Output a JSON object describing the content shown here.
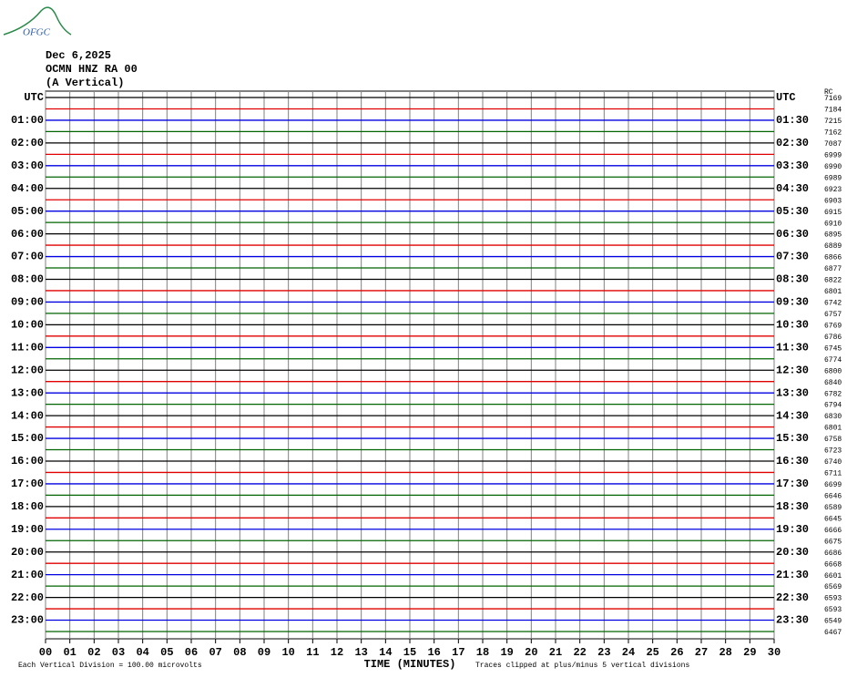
{
  "chart_data": {
    "type": "helicorder",
    "logo": "OFGC",
    "title": [
      "Dec 6,2025",
      "OCMN HNZ RA 00",
      "(A Vertical)"
    ],
    "offset_header": "RC",
    "xlabel": "TIME (MINUTES)",
    "scale_note": "Each Vertical Division =  100.00 microvolts",
    "clip_note": "Traces clipped at plus/minus 5 vertical divisions",
    "trace_colors": [
      "#000000",
      "#e00000",
      "#0000e0",
      "#006400"
    ],
    "grid": true,
    "xlim": [
      0,
      30
    ],
    "xticks": [
      {
        "value": 0,
        "label": "00"
      },
      {
        "value": 1,
        "label": "01"
      },
      {
        "value": 2,
        "label": "02"
      },
      {
        "value": 3,
        "label": "03"
      },
      {
        "value": 4,
        "label": "04"
      },
      {
        "value": 5,
        "label": "05"
      },
      {
        "value": 6,
        "label": "06"
      },
      {
        "value": 7,
        "label": "07"
      },
      {
        "value": 8,
        "label": "08"
      },
      {
        "value": 9,
        "label": "09"
      },
      10,
      11,
      12,
      13,
      14,
      15,
      16,
      17,
      18,
      19,
      20,
      21,
      22,
      23,
      24,
      25,
      26,
      27,
      28,
      29,
      30
    ],
    "rows": [
      {
        "left": "UTC",
        "right": "UTC",
        "offset": 7169
      },
      {
        "left": null,
        "right": null,
        "offset": 7184
      },
      {
        "left": "01:00",
        "right": "01:30",
        "offset": 7215
      },
      {
        "left": null,
        "right": null,
        "offset": 7162
      },
      {
        "left": "02:00",
        "right": "02:30",
        "offset": 7087
      },
      {
        "left": null,
        "right": null,
        "offset": 6999
      },
      {
        "left": "03:00",
        "right": "03:30",
        "offset": 6990
      },
      {
        "left": null,
        "right": null,
        "offset": 6989
      },
      {
        "left": "04:00",
        "right": "04:30",
        "offset": 6923
      },
      {
        "left": null,
        "right": null,
        "offset": 6903
      },
      {
        "left": "05:00",
        "right": "05:30",
        "offset": 6915
      },
      {
        "left": null,
        "right": null,
        "offset": 6910
      },
      {
        "left": "06:00",
        "right": "06:30",
        "offset": 6895
      },
      {
        "left": null,
        "right": null,
        "offset": 6889
      },
      {
        "left": "07:00",
        "right": "07:30",
        "offset": 6866
      },
      {
        "left": null,
        "right": null,
        "offset": 6877
      },
      {
        "left": "08:00",
        "right": "08:30",
        "offset": 6822
      },
      {
        "left": null,
        "right": null,
        "offset": 6801
      },
      {
        "left": "09:00",
        "right": "09:30",
        "offset": 6742
      },
      {
        "left": null,
        "right": null,
        "offset": 6757
      },
      {
        "left": "10:00",
        "right": "10:30",
        "offset": 6769
      },
      {
        "left": null,
        "right": null,
        "offset": 6786
      },
      {
        "left": "11:00",
        "right": "11:30",
        "offset": 6745
      },
      {
        "left": null,
        "right": null,
        "offset": 6774
      },
      {
        "left": "12:00",
        "right": "12:30",
        "offset": 6800
      },
      {
        "left": null,
        "right": null,
        "offset": 6840
      },
      {
        "left": "13:00",
        "right": "13:30",
        "offset": 6782
      },
      {
        "left": null,
        "right": null,
        "offset": 6794
      },
      {
        "left": "14:00",
        "right": "14:30",
        "offset": 6830
      },
      {
        "left": null,
        "right": null,
        "offset": 6801
      },
      {
        "left": "15:00",
        "right": "15:30",
        "offset": 6758
      },
      {
        "left": null,
        "right": null,
        "offset": 6723
      },
      {
        "left": "16:00",
        "right": "16:30",
        "offset": 6740
      },
      {
        "left": null,
        "right": null,
        "offset": 6711
      },
      {
        "left": "17:00",
        "right": "17:30",
        "offset": 6699
      },
      {
        "left": null,
        "right": null,
        "offset": 6646
      },
      {
        "left": "18:00",
        "right": "18:30",
        "offset": 6589
      },
      {
        "left": null,
        "right": null,
        "offset": 6645
      },
      {
        "left": "19:00",
        "right": "19:30",
        "offset": 6666
      },
      {
        "left": null,
        "right": null,
        "offset": 6675
      },
      {
        "left": "20:00",
        "right": "20:30",
        "offset": 6686
      },
      {
        "left": null,
        "right": null,
        "offset": 6668
      },
      {
        "left": "21:00",
        "right": "21:30",
        "offset": 6601
      },
      {
        "left": null,
        "right": null,
        "offset": 6569
      },
      {
        "left": "22:00",
        "right": "22:30",
        "offset": 6593
      },
      {
        "left": null,
        "right": null,
        "offset": 6593
      },
      {
        "left": "23:00",
        "right": "23:30",
        "offset": 6549
      },
      {
        "left": null,
        "right": null,
        "offset": 6467
      }
    ]
  }
}
